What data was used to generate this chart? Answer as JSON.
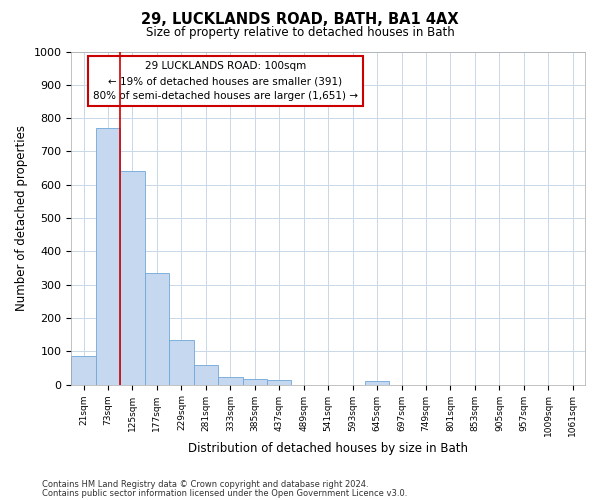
{
  "title1": "29, LUCKLANDS ROAD, BATH, BA1 4AX",
  "title2": "Size of property relative to detached houses in Bath",
  "xlabel": "Distribution of detached houses by size in Bath",
  "ylabel": "Number of detached properties",
  "footnote1": "Contains HM Land Registry data © Crown copyright and database right 2024.",
  "footnote2": "Contains public sector information licensed under the Open Government Licence v3.0.",
  "annotation_line1": "29 LUCKLANDS ROAD: 100sqm",
  "annotation_line2": "← 19% of detached houses are smaller (391)",
  "annotation_line3": "80% of semi-detached houses are larger (1,651) →",
  "bar_color": "#c5d8f0",
  "bar_edge_color": "#6fa8d8",
  "vline_color": "#cc0000",
  "annotation_box_edge_color": "#cc0000",
  "bins": [
    "21sqm",
    "73sqm",
    "125sqm",
    "177sqm",
    "229sqm",
    "281sqm",
    "333sqm",
    "385sqm",
    "437sqm",
    "489sqm",
    "541sqm",
    "593sqm",
    "645sqm",
    "697sqm",
    "749sqm",
    "801sqm",
    "853sqm",
    "905sqm",
    "957sqm",
    "1009sqm",
    "1061sqm"
  ],
  "values": [
    85,
    770,
    640,
    335,
    135,
    58,
    22,
    18,
    15,
    0,
    0,
    0,
    12,
    0,
    0,
    0,
    0,
    0,
    0,
    0,
    0
  ],
  "ylim": [
    0,
    1000
  ],
  "yticks": [
    0,
    100,
    200,
    300,
    400,
    500,
    600,
    700,
    800,
    900,
    1000
  ],
  "vline_x_bar_index": 1.5,
  "fig_width": 6.0,
  "fig_height": 5.0,
  "dpi": 100,
  "background_color": "#ffffff",
  "grid_color": "#c8d8e8"
}
